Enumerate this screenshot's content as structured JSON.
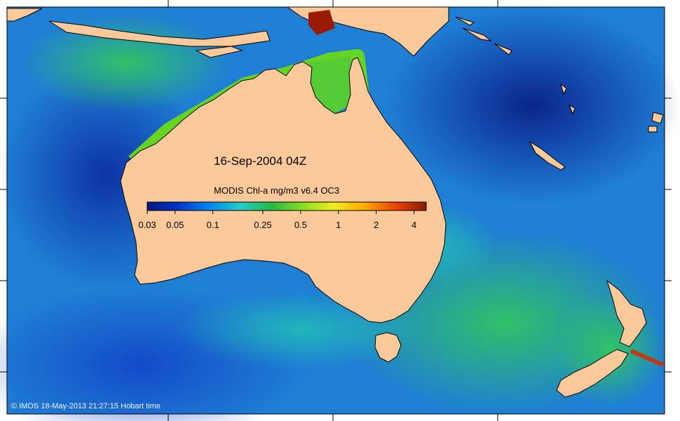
{
  "map": {
    "timestamp": "16-Sep-2004 04Z",
    "product": "MODIS Chl-a mg/m3 v6.4 OC3",
    "colorbar": {
      "ticks": [
        "0.03",
        "0.05",
        "0.1",
        "0.25",
        "0.5",
        "1",
        "2",
        "4"
      ],
      "tick_values": [
        0.03,
        0.05,
        0.1,
        0.25,
        0.5,
        1,
        2,
        4
      ],
      "range": [
        0.03,
        5
      ],
      "scale": "log",
      "colors": [
        "#001a7a",
        "#0033cc",
        "#0088ee",
        "#22cccc",
        "#22bb44",
        "#88dd22",
        "#eeee22",
        "#ffaa00",
        "#ee4400",
        "#8a1a00"
      ]
    },
    "footer": "© IMOS 18-May-2013 21:27:15 Hobart time",
    "colors": {
      "land": "#fcc99a",
      "ocean_low": "#0b2a9a",
      "ocean_mid": "#1e7fd6",
      "ocean_high": "#2ec46a"
    }
  }
}
